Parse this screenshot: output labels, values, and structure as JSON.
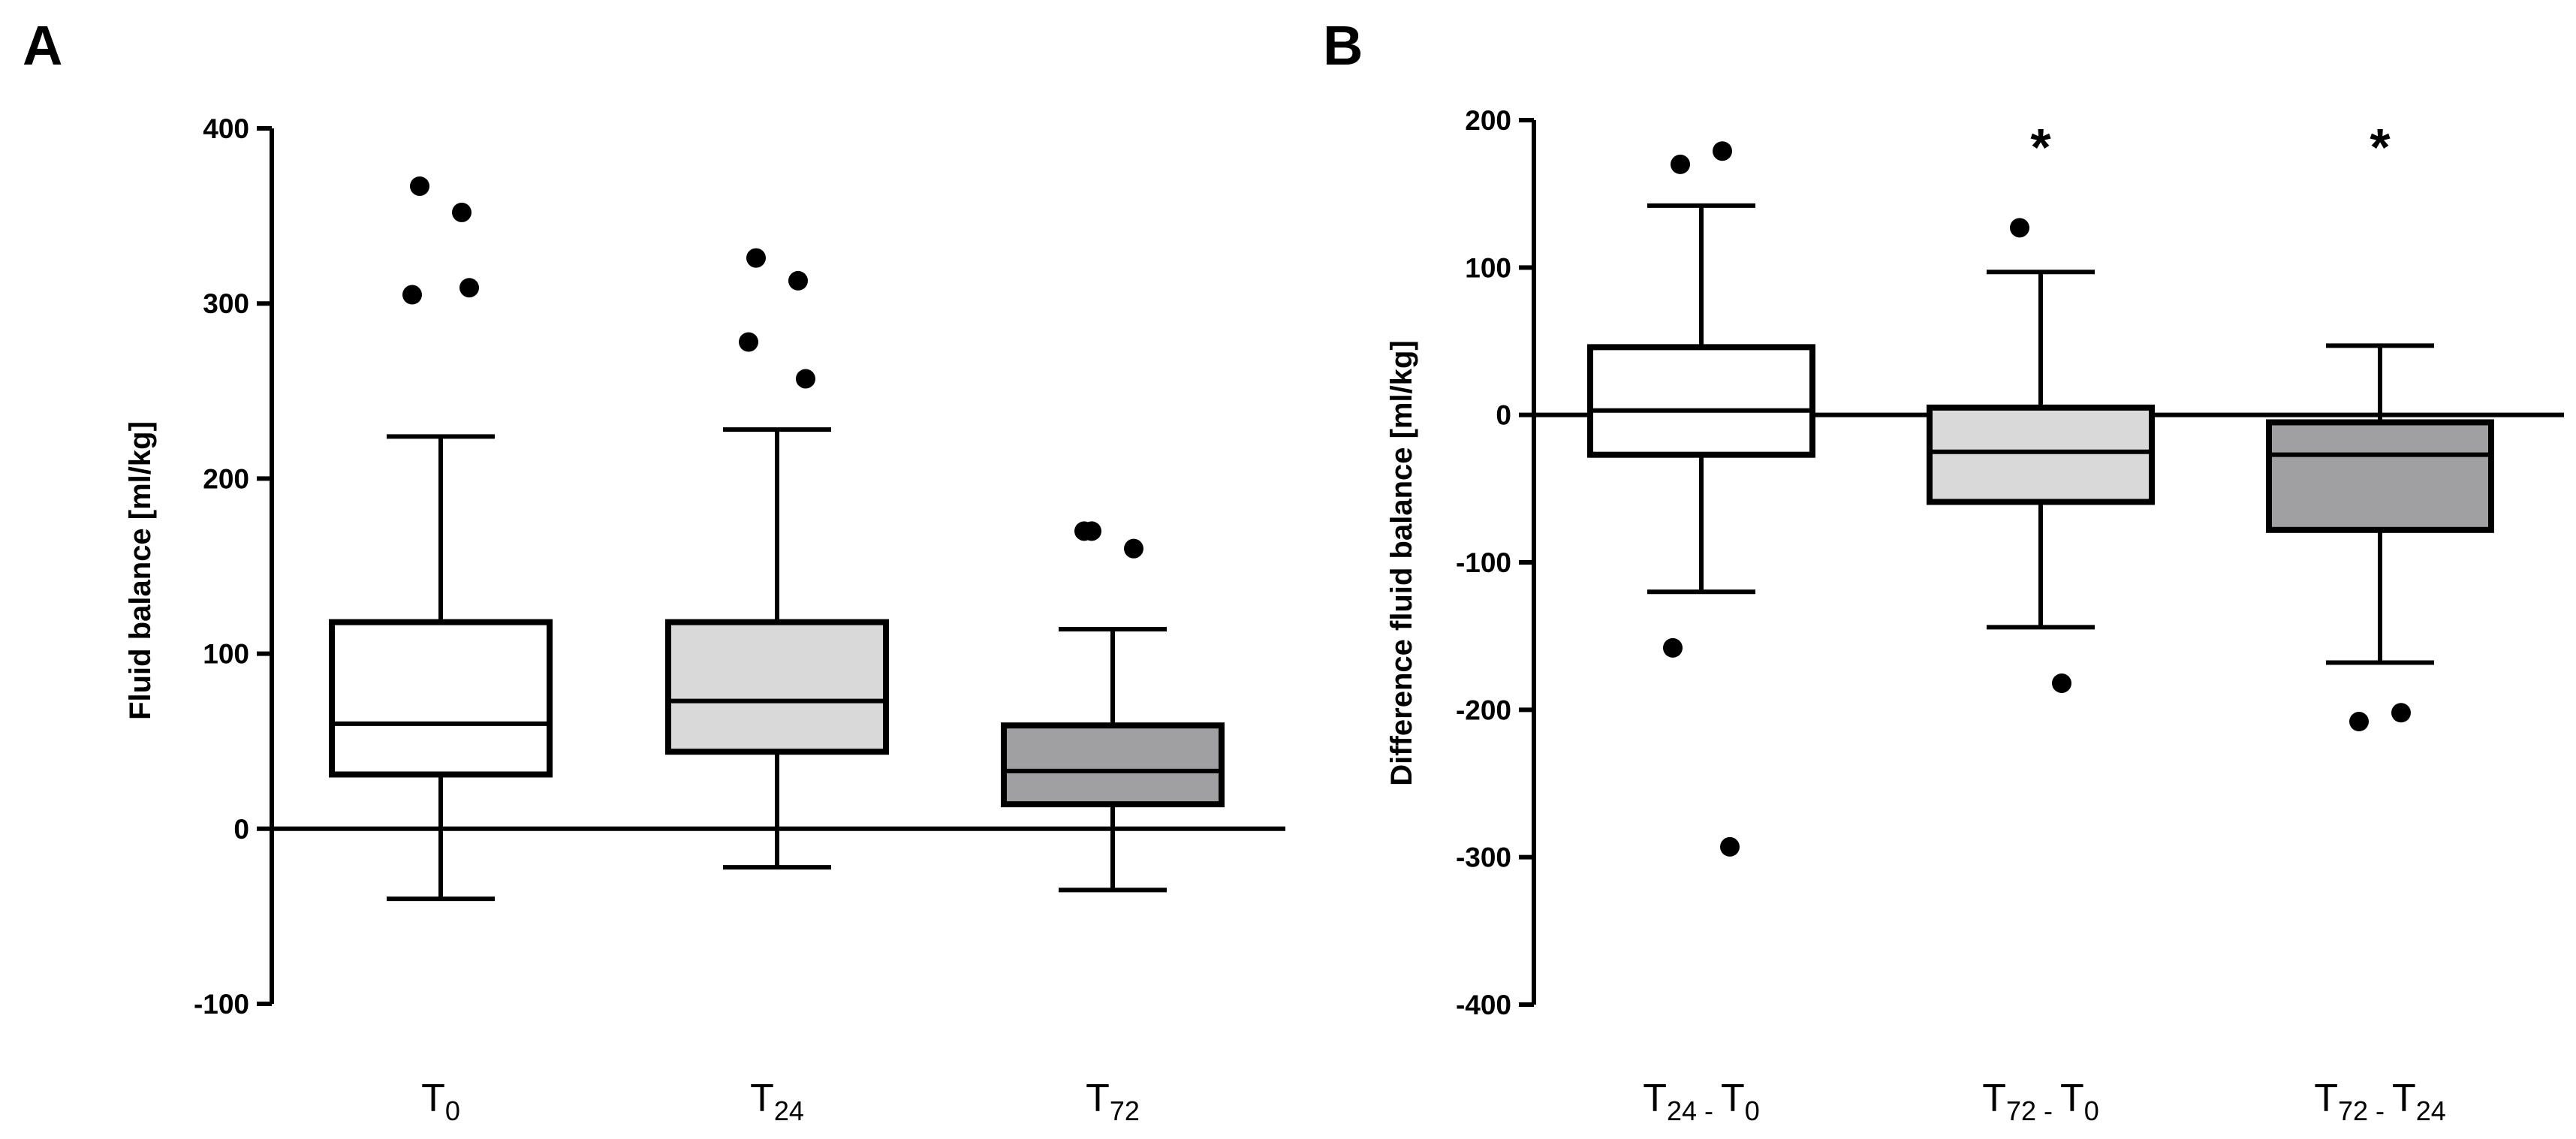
{
  "figure": {
    "colors": {
      "white_box": "#ffffff",
      "light_box": "#d9d9d9",
      "dark_box": "#a0a0a3",
      "ink": "#000000"
    }
  },
  "chart_data": [
    {
      "type": "box",
      "panel": "A",
      "title": "",
      "xlabel": "",
      "ylabel": "Fluid balance [ml/kg]",
      "ylim": [
        -100,
        400
      ],
      "yticks": [
        400,
        300,
        200,
        100,
        0,
        -100
      ],
      "zero_line": true,
      "categories": [
        {
          "main": "T",
          "sub": "0"
        },
        {
          "main": "T",
          "sub": "24"
        },
        {
          "main": "T",
          "sub": "72"
        }
      ],
      "boxes": [
        {
          "name": "T0",
          "fill": "#ffffff",
          "whisker_low": -40,
          "q1": 31,
          "median": 60,
          "q3": 118,
          "whisker_high": 224,
          "outliers": [
            367,
            352,
            305,
            309
          ],
          "annotation": ""
        },
        {
          "name": "T24",
          "fill": "#d9d9d9",
          "whisker_low": -22,
          "q1": 44,
          "median": 73,
          "q3": 118,
          "whisker_high": 228,
          "outliers": [
            326,
            313,
            278,
            257
          ],
          "annotation": ""
        },
        {
          "name": "T72",
          "fill": "#a0a0a3",
          "whisker_low": -35,
          "q1": 14,
          "median": 33,
          "q3": 59,
          "whisker_high": 114,
          "outliers": [
            170,
            160,
            170
          ],
          "annotation": ""
        }
      ]
    },
    {
      "type": "box",
      "panel": "B",
      "title": "",
      "xlabel": "",
      "ylabel": "Difference fluid balance [ml/kg]",
      "ylim": [
        -400,
        200
      ],
      "yticks": [
        200,
        100,
        0,
        -100,
        -200,
        -300,
        -400
      ],
      "zero_line": true,
      "categories": [
        {
          "main": "T",
          "sub": "24",
          "sep": " - ",
          "main2": "T",
          "sub2": "0"
        },
        {
          "main": "T",
          "sub": "72",
          "sep": " - ",
          "main2": "T",
          "sub2": "0"
        },
        {
          "main": "T",
          "sub": "72",
          "sep": " - ",
          "main2": "T",
          "sub2": "24"
        }
      ],
      "boxes": [
        {
          "name": "T24 - T0",
          "fill": "#ffffff",
          "whisker_low": -120,
          "q1": -27,
          "median": 3,
          "q3": 46,
          "whisker_high": 142,
          "outliers": [
            170,
            179,
            -158,
            -293
          ],
          "annotation": ""
        },
        {
          "name": "T72 - T0",
          "fill": "#d9d9d9",
          "whisker_low": -144,
          "q1": -59,
          "median": -25,
          "q3": 5,
          "whisker_high": 97,
          "outliers": [
            127,
            -182
          ],
          "annotation": "*"
        },
        {
          "name": "T72 - T24",
          "fill": "#a0a0a3",
          "whisker_low": -168,
          "q1": -78,
          "median": -27,
          "q3": -5,
          "whisker_high": 47,
          "outliers": [
            -208,
            -202
          ],
          "annotation": "*"
        }
      ]
    }
  ]
}
